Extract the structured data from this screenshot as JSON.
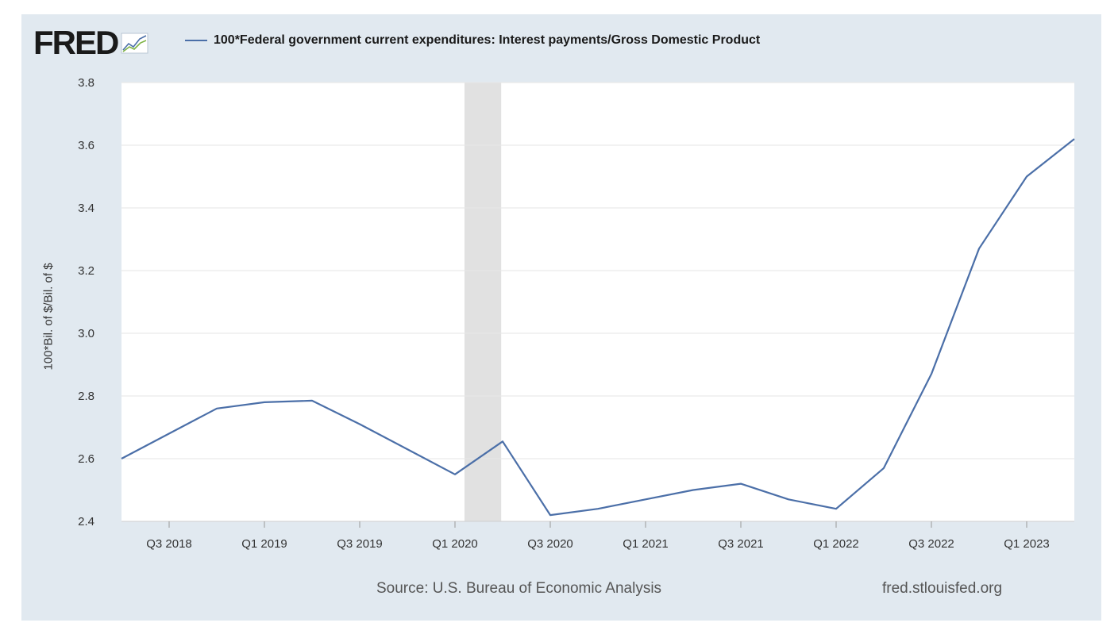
{
  "brand": {
    "name": "FRED",
    "icon": "line-graph-icon"
  },
  "colors": {
    "background": "#e1e9f0",
    "plot_bg": "#ffffff",
    "series": "#4b6fa8",
    "recession": "#e1e1e1",
    "grid": "#e6e6e6"
  },
  "footer": {
    "source": "Source: U.S. Bureau of Economic Analysis",
    "site": "fred.stlouisfed.org"
  },
  "chart_data": {
    "type": "line",
    "title": "",
    "ylabel": "100*Bil. of $/Bil. of $",
    "xlabel": "",
    "ylim": [
      2.4,
      3.8
    ],
    "yticks": [
      "2.4",
      "2.6",
      "2.8",
      "3.0",
      "3.2",
      "3.4",
      "3.6",
      "3.8"
    ],
    "xticks": [
      "Q3 2018",
      "Q1 2019",
      "Q3 2019",
      "Q1 2020",
      "Q3 2020",
      "Q1 2021",
      "Q3 2021",
      "Q1 2022",
      "Q3 2022",
      "Q1 2023"
    ],
    "grid": true,
    "legend": "top",
    "recession_shading": {
      "from": "Q1 2020",
      "to": "Q2 2020"
    },
    "series": [
      {
        "name": "100*Federal government current expenditures: Interest payments/Gross Domestic Product",
        "x": [
          "Q2 2018",
          "Q3 2018",
          "Q4 2018",
          "Q1 2019",
          "Q2 2019",
          "Q3 2019",
          "Q4 2019",
          "Q1 2020",
          "Q2 2020",
          "Q3 2020",
          "Q4 2020",
          "Q1 2021",
          "Q2 2021",
          "Q3 2021",
          "Q4 2021",
          "Q1 2022",
          "Q2 2022",
          "Q3 2022",
          "Q4 2022",
          "Q1 2023",
          "Q2 2023"
        ],
        "values": [
          2.6,
          2.68,
          2.76,
          2.78,
          2.785,
          2.71,
          2.63,
          2.55,
          2.655,
          2.42,
          2.44,
          2.47,
          2.5,
          2.52,
          2.47,
          2.44,
          2.57,
          2.87,
          3.27,
          3.5,
          3.62
        ]
      }
    ]
  }
}
